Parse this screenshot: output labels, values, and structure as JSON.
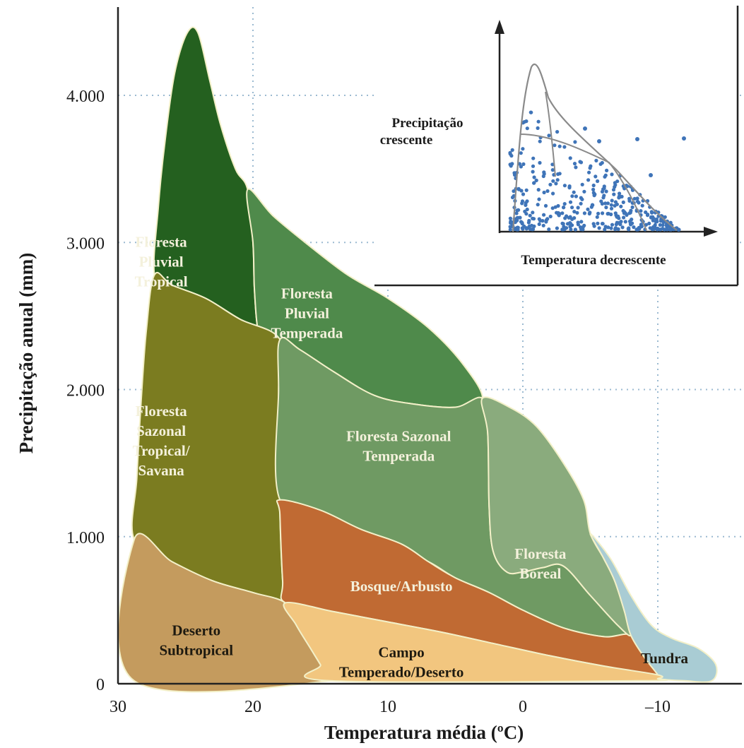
{
  "chart_data": {
    "type": "area",
    "title": "",
    "xlabel": "Temperatura média (ºC)",
    "ylabel": "Precipitação anual (mm)",
    "x_reversed": true,
    "xlim": [
      30,
      -15
    ],
    "ylim": [
      0,
      4500
    ],
    "x_ticks": [
      {
        "value": 30,
        "label": "30"
      },
      {
        "value": 20,
        "label": "20"
      },
      {
        "value": 10,
        "label": "10"
      },
      {
        "value": 0,
        "label": "0"
      },
      {
        "value": -10,
        "label": "–10"
      }
    ],
    "y_ticks": [
      {
        "value": 0,
        "label": "0"
      },
      {
        "value": 1000,
        "label": "1.000"
      },
      {
        "value": 2000,
        "label": "2.000"
      },
      {
        "value": 3000,
        "label": "3.000"
      },
      {
        "value": 4000,
        "label": "4.000"
      }
    ],
    "grid": true,
    "biomes": [
      {
        "id": "floresta-pluvial-tropical",
        "name": "Floresta Pluvial Tropical",
        "label_lines": [
          "Floresta",
          "Pluvial",
          "Tropical"
        ],
        "label_at": [
          26.8,
          2970
        ],
        "color": "#24601f",
        "boundary": [
          [
            27.3,
            2780
          ],
          [
            27.0,
            3250
          ],
          [
            26.5,
            3700
          ],
          [
            25.8,
            4150
          ],
          [
            24.9,
            4420
          ],
          [
            24.1,
            4430
          ],
          [
            23.2,
            4100
          ],
          [
            22.4,
            3800
          ],
          [
            21.3,
            3500
          ],
          [
            20.4,
            3360
          ],
          [
            20.0,
            3000
          ],
          [
            19.9,
            2700
          ],
          [
            19.7,
            2450
          ],
          [
            19.4,
            2350
          ],
          [
            18.0,
            2340
          ],
          [
            21.0,
            2480
          ],
          [
            23.5,
            2620
          ],
          [
            26.0,
            2710
          ]
        ]
      },
      {
        "id": "floresta-pluvial-temperada",
        "name": "Floresta Pluvial Temperada",
        "label_lines": [
          "Floresta",
          "Pluvial",
          "Temperada"
        ],
        "label_at": [
          16.0,
          2620
        ],
        "color": "#4f8a4b",
        "boundary": [
          [
            20.4,
            3360
          ],
          [
            18.5,
            3180
          ],
          [
            16.0,
            2990
          ],
          [
            13.0,
            2780
          ],
          [
            10.0,
            2620
          ],
          [
            7.0,
            2420
          ],
          [
            4.5,
            2180
          ],
          [
            3.0,
            1940
          ],
          [
            5.0,
            1880
          ],
          [
            8.0,
            1900
          ],
          [
            11.0,
            1960
          ],
          [
            14.0,
            2120
          ],
          [
            16.5,
            2270
          ],
          [
            18.0,
            2340
          ],
          [
            19.4,
            2350
          ],
          [
            19.7,
            2450
          ],
          [
            19.9,
            2700
          ],
          [
            20.0,
            3000
          ]
        ]
      },
      {
        "id": "floresta-sazonal-tropical-savana",
        "name": "Floresta Sazonal Tropical/Savana",
        "label_lines": [
          "Floresta",
          "Sazonal",
          "Tropical/",
          "Savana"
        ],
        "label_at": [
          26.8,
          1820
        ],
        "color": "#7b7c20",
        "boundary": [
          [
            28.8,
            980
          ],
          [
            28.6,
            1400
          ],
          [
            28.3,
            1900
          ],
          [
            27.9,
            2400
          ],
          [
            27.3,
            2780
          ],
          [
            26.0,
            2710
          ],
          [
            23.5,
            2620
          ],
          [
            21.0,
            2480
          ],
          [
            18.0,
            2340
          ],
          [
            18.1,
            2000
          ],
          [
            18.0,
            1500
          ],
          [
            18.0,
            1150
          ],
          [
            17.8,
            700
          ],
          [
            17.6,
            550
          ],
          [
            20.0,
            620
          ],
          [
            23.0,
            700
          ],
          [
            26.0,
            830
          ]
        ]
      },
      {
        "id": "floresta-sazonal-temperada",
        "name": "Floresta Sazonal Temperada",
        "label_lines": [
          "Floresta Sazonal",
          "Temperada"
        ],
        "label_at": [
          9.2,
          1650
        ],
        "color": "#6f9a63",
        "boundary": [
          [
            18.0,
            2340
          ],
          [
            16.5,
            2270
          ],
          [
            14.0,
            2120
          ],
          [
            11.0,
            1960
          ],
          [
            8.0,
            1900
          ],
          [
            5.0,
            1880
          ],
          [
            3.0,
            1940
          ],
          [
            2.6,
            1700
          ],
          [
            2.5,
            1200
          ],
          [
            2.2,
            900
          ],
          [
            1.2,
            760
          ],
          [
            0.0,
            760
          ],
          [
            -1.5,
            790
          ],
          [
            -3.0,
            800
          ],
          [
            -5.0,
            600
          ],
          [
            -7.0,
            400
          ],
          [
            -8.0,
            330
          ],
          [
            -6.0,
            320
          ],
          [
            -3.0,
            380
          ],
          [
            0.0,
            500
          ],
          [
            2.5,
            620
          ],
          [
            5.0,
            720
          ],
          [
            7.0,
            830
          ],
          [
            10.0,
            950
          ],
          [
            14.0,
            1120
          ],
          [
            18.0,
            1250
          ],
          [
            18.1,
            2000
          ]
        ]
      },
      {
        "id": "bosque-arbusto",
        "name": "Bosque/Arbusto",
        "label_lines": [
          "Bosque/Arbusto"
        ],
        "label_at": [
          9.0,
          630
        ],
        "color": "#c06a33",
        "boundary": [
          [
            18.0,
            1250
          ],
          [
            15.0,
            1180
          ],
          [
            12.0,
            1050
          ],
          [
            9.0,
            950
          ],
          [
            7.0,
            830
          ],
          [
            5.0,
            720
          ],
          [
            2.5,
            620
          ],
          [
            0.0,
            500
          ],
          [
            -3.0,
            380
          ],
          [
            -6.0,
            320
          ],
          [
            -8.0,
            330
          ],
          [
            -9.0,
            180
          ],
          [
            -10.0,
            60
          ],
          [
            -6.0,
            120
          ],
          [
            -2.0,
            190
          ],
          [
            2.0,
            270
          ],
          [
            6.0,
            350
          ],
          [
            10.0,
            420
          ],
          [
            14.0,
            490
          ],
          [
            17.6,
            550
          ],
          [
            17.8,
            700
          ],
          [
            18.0,
            1150
          ]
        ]
      },
      {
        "id": "floresta-boreal",
        "name": "Floresta Boreal",
        "label_lines": [
          "Floresta",
          "Boreal"
        ],
        "label_at": [
          -1.3,
          850
        ],
        "color": "#8aab7d",
        "boundary": [
          [
            3.0,
            1940
          ],
          [
            1.0,
            1880
          ],
          [
            -1.0,
            1750
          ],
          [
            -3.0,
            1500
          ],
          [
            -4.5,
            1250
          ],
          [
            -5.0,
            1020
          ],
          [
            -6.0,
            850
          ],
          [
            -6.8,
            700
          ],
          [
            -7.5,
            500
          ],
          [
            -8.0,
            330
          ],
          [
            -7.0,
            400
          ],
          [
            -5.0,
            600
          ],
          [
            -3.0,
            800
          ],
          [
            -1.5,
            790
          ],
          [
            0.0,
            760
          ],
          [
            1.2,
            760
          ],
          [
            2.2,
            900
          ],
          [
            2.5,
            1200
          ],
          [
            2.6,
            1700
          ]
        ]
      },
      {
        "id": "tundra",
        "name": "Tundra",
        "label_lines": [
          "Tundra"
        ],
        "label_at": [
          -10.5,
          140
        ],
        "color": "#a9ccd4",
        "boundary": [
          [
            -5.0,
            1020
          ],
          [
            -6.5,
            850
          ],
          [
            -8.0,
            600
          ],
          [
            -9.5,
            400
          ],
          [
            -11.0,
            310
          ],
          [
            -13.0,
            240
          ],
          [
            -14.3,
            130
          ],
          [
            -14.0,
            20
          ],
          [
            -12.0,
            20
          ],
          [
            -10.0,
            35
          ],
          [
            -10.0,
            60
          ],
          [
            -9.0,
            180
          ],
          [
            -8.0,
            330
          ],
          [
            -7.5,
            500
          ],
          [
            -6.8,
            700
          ],
          [
            -6.0,
            850
          ]
        ]
      },
      {
        "id": "deserto-subtropical",
        "name": "Deserto Subtropical",
        "label_lines": [
          "Deserto",
          "Subtropical"
        ],
        "label_at": [
          24.2,
          330
        ],
        "color": "#c49b5e",
        "boundary": [
          [
            28.8,
            980
          ],
          [
            26.0,
            830
          ],
          [
            23.0,
            700
          ],
          [
            20.0,
            620
          ],
          [
            17.6,
            550
          ],
          [
            16.8,
            400
          ],
          [
            15.8,
            250
          ],
          [
            15.0,
            130
          ],
          [
            14.3,
            20
          ],
          [
            28.8,
            20
          ]
        ]
      },
      {
        "id": "campo-temperado-deserto",
        "name": "Campo Temperado/Deserto",
        "label_lines": [
          "Campo",
          "Temperado/Deserto"
        ],
        "label_at": [
          9.0,
          180
        ],
        "color": "#f2c67f",
        "boundary": [
          [
            17.6,
            550
          ],
          [
            14.0,
            490
          ],
          [
            10.0,
            420
          ],
          [
            6.0,
            350
          ],
          [
            2.0,
            270
          ],
          [
            -2.0,
            190
          ],
          [
            -6.0,
            120
          ],
          [
            -10.0,
            60
          ],
          [
            -10.0,
            35
          ],
          [
            -8.5,
            20
          ],
          [
            14.3,
            20
          ],
          [
            15.0,
            130
          ],
          [
            15.8,
            250
          ],
          [
            16.8,
            400
          ]
        ]
      }
    ],
    "inset": {
      "type": "scatter",
      "xlabel": "Temperatura decrescente",
      "ylabel_lines": [
        "Precipitação",
        "crescente"
      ],
      "point_color": "#3f74b8",
      "point_count": 420
    }
  }
}
